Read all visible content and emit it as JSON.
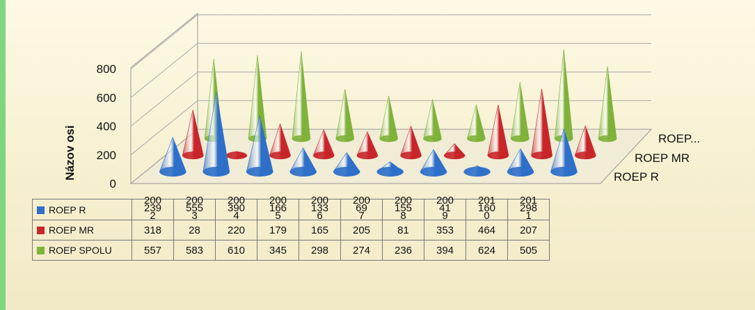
{
  "chart_data": {
    "type": "bar",
    "style": "3d-cone",
    "ylabel": "Názov osi",
    "yticks": [
      0,
      200,
      400,
      600,
      800
    ],
    "ylim": [
      0,
      800
    ],
    "categories": [
      "2002",
      "2003",
      "2004",
      "2005",
      "2006",
      "2007",
      "2008",
      "2009",
      "2010",
      "2011"
    ],
    "depth_labels": [
      "ROEP R",
      "ROEP MR",
      "ROEP..."
    ],
    "series": [
      {
        "name": "ROEP R",
        "color": "#2e6fc9",
        "values": [
          239,
          555,
          390,
          166,
          133,
          69,
          155,
          41,
          160,
          298
        ]
      },
      {
        "name": "ROEP MR",
        "color": "#c8262a",
        "values": [
          318,
          28,
          220,
          179,
          165,
          205,
          81,
          353,
          464,
          207
        ]
      },
      {
        "name": "ROEP SPOLU",
        "color": "#7fb23a",
        "values": [
          557,
          583,
          610,
          345,
          298,
          274,
          236,
          394,
          624,
          505
        ]
      }
    ],
    "data_table": true,
    "legend": "in-table"
  }
}
